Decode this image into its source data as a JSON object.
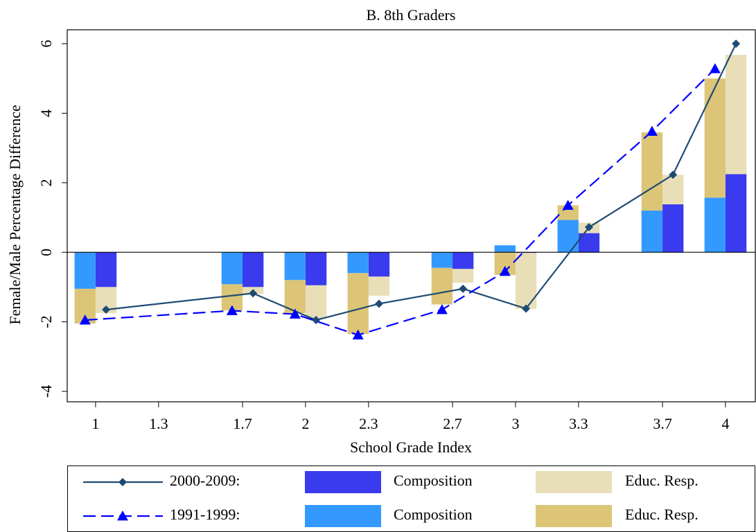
{
  "chart_data": {
    "type": "bar-line",
    "title": "B. 8th Graders",
    "x_label": "School Grade Index",
    "y_label": "Female/Male Percentage Difference",
    "x": [
      1,
      1.7,
      2,
      2.3,
      2.7,
      3,
      3.3,
      3.7,
      4
    ],
    "xlim": [
      0.865,
      4.142
    ],
    "xticks": [
      1,
      1.3,
      1.7,
      2,
      2.3,
      2.7,
      3,
      3.3,
      3.7,
      4
    ],
    "ylim": [
      -4.3,
      6.4
    ],
    "yticks": [
      -4,
      -2,
      0,
      2,
      4,
      6
    ],
    "series": [
      {
        "name": "Composition",
        "color": "#3a3aee",
        "values": [
          -1.0,
          -1.0,
          -0.95,
          -0.7,
          -0.48,
          -0.02,
          0.55,
          1.38,
          2.25
        ]
      },
      {
        "name": "Educ. Resp.",
        "color": "#e8dfb8",
        "values": [
          -0.75,
          -0.2,
          -0.95,
          -0.55,
          -0.4,
          -1.61,
          0.3,
          0.85,
          3.43
        ]
      },
      {
        "name": "Composition",
        "color": "#3399ff",
        "values": [
          -1.05,
          -0.92,
          -0.8,
          -0.6,
          -0.45,
          0.2,
          0.93,
          1.2,
          1.57
        ]
      },
      {
        "name": "Educ. Resp.",
        "color": "#dcc577",
        "values": [
          -1.0,
          -0.75,
          -0.95,
          -1.75,
          -1.05,
          -0.65,
          0.42,
          2.25,
          3.43
        ]
      },
      {
        "name": "2000-2009:",
        "color": "#1f4b73",
        "values": [
          -1.65,
          -1.18,
          -1.95,
          -1.48,
          -1.05,
          -1.62,
          0.72,
          2.23,
          6.0
        ]
      },
      {
        "name": "1991-1999:",
        "color": "#0000ff",
        "values": [
          -1.95,
          -1.68,
          -1.78,
          -2.38,
          -1.65,
          -0.55,
          1.35,
          3.48,
          5.28
        ]
      }
    ]
  }
}
